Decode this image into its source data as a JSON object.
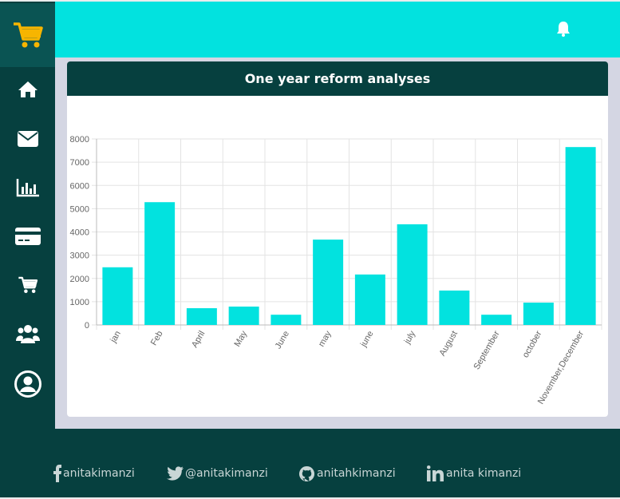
{
  "chart_data": {
    "type": "bar",
    "title": "One year reform analyses",
    "categories": [
      "jan",
      "Feb",
      "April",
      "May",
      "June",
      "may",
      "june",
      "july",
      "August",
      "September",
      "october",
      "November,December"
    ],
    "values": [
      2480,
      5280,
      720,
      790,
      440,
      3670,
      2170,
      4330,
      1480,
      440,
      960,
      7650
    ],
    "ylim": [
      0,
      8000
    ],
    "yticks": [
      0,
      1000,
      2000,
      3000,
      4000,
      5000,
      6000,
      7000,
      8000
    ],
    "grid": true,
    "bar_color": "#02e2df"
  },
  "colors": {
    "sidebar": "#06403f",
    "topbar": "#02e2df",
    "logo_cart": "#f7b500",
    "content_bg": "#d4d6e3"
  },
  "sidebar": {
    "logo_icon": "cart-icon",
    "items": [
      {
        "name": "home",
        "icon": "home-icon"
      },
      {
        "name": "messages",
        "icon": "envelope-icon"
      },
      {
        "name": "analytics",
        "icon": "bar-chart-icon"
      },
      {
        "name": "payments",
        "icon": "credit-card-icon"
      },
      {
        "name": "cart",
        "icon": "cart-icon"
      },
      {
        "name": "users",
        "icon": "users-icon"
      },
      {
        "name": "account",
        "icon": "user-circle-icon"
      }
    ]
  },
  "header": {
    "notification_icon": "bell-icon"
  },
  "footer": {
    "links": [
      {
        "icon": "facebook-icon",
        "label": "anitakimanzi"
      },
      {
        "icon": "twitter-icon",
        "label": "@anitakimanzi"
      },
      {
        "icon": "github-icon",
        "label": "anitahkimanzi"
      },
      {
        "icon": "linkedin-icon",
        "label": "anita kimanzi"
      }
    ]
  }
}
